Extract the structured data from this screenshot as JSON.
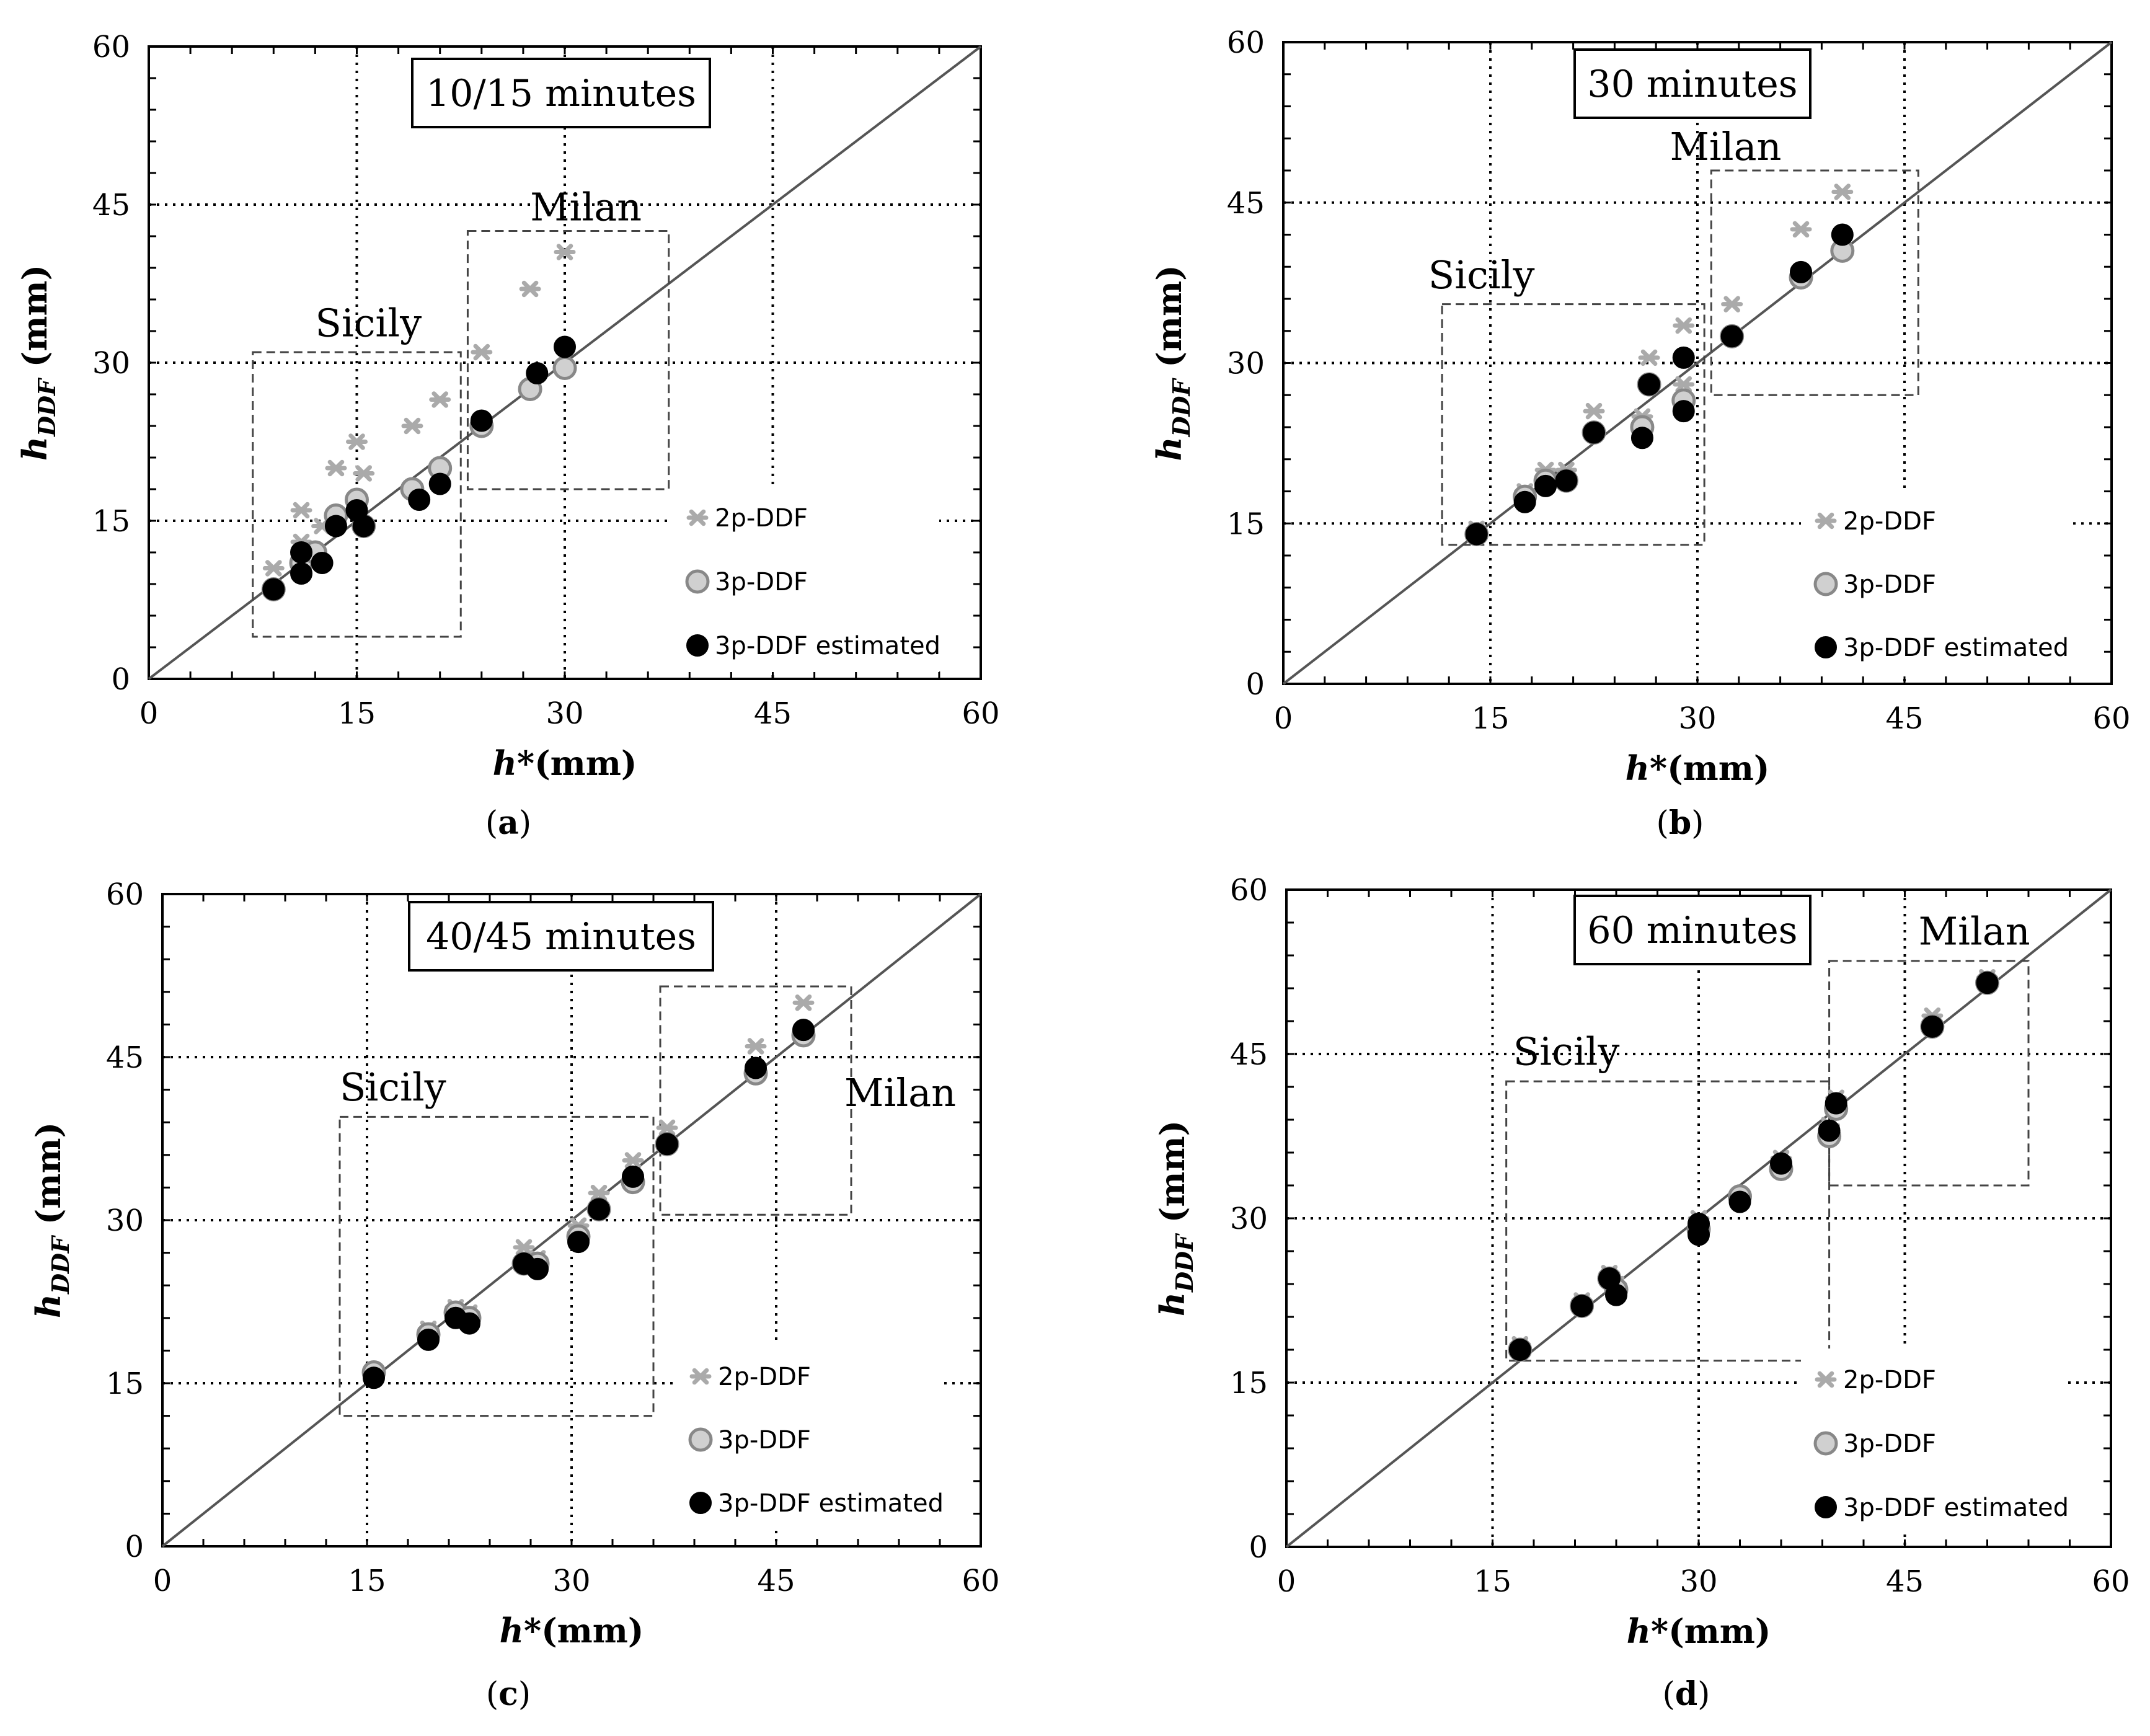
{
  "chart_data": [
    {
      "type": "scatter",
      "panel": "(a)",
      "panel_letter": "a",
      "title": "10/15 minutes",
      "xlabel": "h*(mm)",
      "ylabel": "hDDF (mm)",
      "xlim": [
        0,
        60
      ],
      "ylim": [
        0,
        60
      ],
      "xticks": [
        0,
        15,
        30,
        45,
        60
      ],
      "yticks": [
        0,
        15,
        30,
        45,
        60
      ],
      "regions": [
        {
          "name": "Sicily",
          "x": [
            7.5,
            22.5
          ],
          "y": [
            4,
            31
          ],
          "label_at": [
            12,
            32.5
          ]
        },
        {
          "name": "Milan",
          "x": [
            23,
            37.5
          ],
          "y": [
            18,
            42.5
          ],
          "label_at": [
            27.5,
            43.5
          ]
        }
      ],
      "series": [
        {
          "name": "2p-DDF",
          "marker": "asterisk",
          "color": "#aaaaaa",
          "points": [
            [
              9,
              10.5
            ],
            [
              11,
              16
            ],
            [
              11,
              13
            ],
            [
              12.5,
              14.5
            ],
            [
              13.5,
              20
            ],
            [
              15,
              22.5
            ],
            [
              15.5,
              19.5
            ],
            [
              19,
              24
            ],
            [
              21,
              26.5
            ],
            [
              24,
              31
            ],
            [
              27.5,
              37
            ],
            [
              30,
              40.5
            ]
          ]
        },
        {
          "name": "3p-DDF",
          "marker": "hollow-circle",
          "color": "#888888",
          "points": [
            [
              9,
              8.5
            ],
            [
              11,
              11
            ],
            [
              12,
              12
            ],
            [
              13.5,
              15.5
            ],
            [
              15,
              17
            ],
            [
              15.5,
              14.5
            ],
            [
              19,
              18
            ],
            [
              21,
              20
            ],
            [
              24,
              24
            ],
            [
              27.5,
              27.5
            ],
            [
              30,
              29.5
            ]
          ]
        },
        {
          "name": "3p-DDF estimated",
          "marker": "filled-circle",
          "color": "#000000",
          "points": [
            [
              9,
              8.5
            ],
            [
              11,
              12
            ],
            [
              11,
              10
            ],
            [
              12.5,
              11
            ],
            [
              13.5,
              14.5
            ],
            [
              15,
              16
            ],
            [
              15.5,
              14.5
            ],
            [
              19.5,
              17
            ],
            [
              21,
              18.5
            ],
            [
              24,
              24.5
            ],
            [
              28,
              29
            ],
            [
              30,
              31.5
            ]
          ]
        }
      ],
      "legend": [
        "2p-DDF",
        "3p-DDF",
        "3p-DDF estimated"
      ]
    },
    {
      "type": "scatter",
      "panel": "(b)",
      "panel_letter": "b",
      "title": "30 minutes",
      "xlabel": "h*(mm)",
      "ylabel": "hDDF (mm)",
      "xlim": [
        0,
        60
      ],
      "ylim": [
        0,
        60
      ],
      "xticks": [
        0,
        15,
        30,
        45,
        60
      ],
      "yticks": [
        0,
        15,
        30,
        45,
        60
      ],
      "regions": [
        {
          "name": "Sicily",
          "x": [
            11.5,
            30.5
          ],
          "y": [
            13,
            35.5
          ],
          "label_at": [
            10.5,
            37
          ]
        },
        {
          "name": "Milan",
          "x": [
            31,
            46
          ],
          "y": [
            27,
            48
          ],
          "label_at": [
            28,
            49
          ]
        }
      ],
      "series": [
        {
          "name": "2p-DDF",
          "marker": "asterisk",
          "color": "#aaaaaa",
          "points": [
            [
              14,
              14.5
            ],
            [
              17.5,
              18
            ],
            [
              19,
              20
            ],
            [
              20.5,
              20
            ],
            [
              22.5,
              25.5
            ],
            [
              26,
              25
            ],
            [
              26.5,
              30.5
            ],
            [
              29,
              28
            ],
            [
              29,
              33.5
            ],
            [
              32.5,
              35.5
            ],
            [
              37.5,
              42.5
            ],
            [
              40.5,
              46
            ]
          ]
        },
        {
          "name": "3p-DDF",
          "marker": "hollow-circle",
          "color": "#888888",
          "points": [
            [
              14,
              14
            ],
            [
              17.5,
              17.5
            ],
            [
              19,
              19
            ],
            [
              20.5,
              19
            ],
            [
              22.5,
              23.5
            ],
            [
              26,
              24
            ],
            [
              26.5,
              28
            ],
            [
              29,
              26.5
            ],
            [
              32.5,
              32.5
            ],
            [
              37.5,
              38
            ],
            [
              40.5,
              40.5
            ]
          ]
        },
        {
          "name": "3p-DDF estimated",
          "marker": "filled-circle",
          "color": "#000000",
          "points": [
            [
              14,
              14
            ],
            [
              17.5,
              17
            ],
            [
              19,
              18.5
            ],
            [
              20.5,
              19
            ],
            [
              22.5,
              23.5
            ],
            [
              26,
              23
            ],
            [
              26.5,
              28
            ],
            [
              29,
              30.5
            ],
            [
              29,
              25.5
            ],
            [
              32.5,
              32.5
            ],
            [
              37.5,
              38.5
            ],
            [
              40.5,
              42
            ]
          ]
        }
      ],
      "legend": [
        "2p-DDF",
        "3p-DDF",
        "3p-DDF estimated"
      ]
    },
    {
      "type": "scatter",
      "panel": "(c)",
      "panel_letter": "c",
      "title": "40/45 minutes",
      "xlabel": "h*(mm)",
      "ylabel": "hDDF (mm)",
      "xlim": [
        0,
        60
      ],
      "ylim": [
        0,
        60
      ],
      "xticks": [
        0,
        15,
        30,
        45,
        60
      ],
      "yticks": [
        0,
        15,
        30,
        45,
        60
      ],
      "regions": [
        {
          "name": "Sicily",
          "x": [
            13,
            36
          ],
          "y": [
            12,
            39.5
          ],
          "label_at": [
            13,
            41
          ]
        },
        {
          "name": "Milan",
          "x": [
            36.5,
            50.5
          ],
          "y": [
            30.5,
            51.5
          ],
          "label_at": [
            50,
            40.5
          ]
        }
      ],
      "series": [
        {
          "name": "2p-DDF",
          "marker": "asterisk",
          "color": "#aaaaaa",
          "points": [
            [
              15.5,
              15.5
            ],
            [
              19.5,
              20
            ],
            [
              21.5,
              22
            ],
            [
              22.5,
              21.5
            ],
            [
              26.5,
              27.5
            ],
            [
              27.5,
              26.5
            ],
            [
              30.5,
              29.5
            ],
            [
              32,
              32.5
            ],
            [
              34.5,
              35.5
            ],
            [
              37,
              38.5
            ],
            [
              43.5,
              46
            ],
            [
              47,
              50
            ]
          ]
        },
        {
          "name": "3p-DDF",
          "marker": "hollow-circle",
          "color": "#888888",
          "points": [
            [
              15.5,
              16
            ],
            [
              19.5,
              19.5
            ],
            [
              21.5,
              21.5
            ],
            [
              22.5,
              21
            ],
            [
              26.5,
              26
            ],
            [
              27.5,
              26
            ],
            [
              30.5,
              28.5
            ],
            [
              32,
              31
            ],
            [
              34.5,
              33.5
            ],
            [
              37,
              37
            ],
            [
              43.5,
              43.5
            ],
            [
              47,
              47
            ]
          ]
        },
        {
          "name": "3p-DDF estimated",
          "marker": "filled-circle",
          "color": "#000000",
          "points": [
            [
              15.5,
              15.5
            ],
            [
              19.5,
              19
            ],
            [
              21.5,
              21
            ],
            [
              22.5,
              20.5
            ],
            [
              26.5,
              26
            ],
            [
              27.5,
              25.5
            ],
            [
              30.5,
              28
            ],
            [
              32,
              31
            ],
            [
              34.5,
              34
            ],
            [
              37,
              37
            ],
            [
              43.5,
              44
            ],
            [
              47,
              47.5
            ]
          ]
        }
      ],
      "legend": [
        "2p-DDF",
        "3p-DDF",
        "3p-DDF estimated"
      ]
    },
    {
      "type": "scatter",
      "panel": "(d)",
      "panel_letter": "d",
      "title": "60 minutes",
      "xlabel": "h*(mm)",
      "ylabel": "hDDF (mm)",
      "xlim": [
        0,
        60
      ],
      "ylim": [
        0,
        60
      ],
      "xticks": [
        0,
        15,
        30,
        45,
        60
      ],
      "yticks": [
        0,
        15,
        30,
        45,
        60
      ],
      "regions": [
        {
          "name": "Sicily",
          "x": [
            16,
            39.5
          ],
          "y": [
            17,
            42.5
          ],
          "label_at": [
            16.5,
            44
          ]
        },
        {
          "name": "Milan",
          "x": [
            39.5,
            54
          ],
          "y": [
            33,
            53.5
          ],
          "label_at": [
            46,
            55
          ]
        }
      ],
      "series": [
        {
          "name": "2p-DDF",
          "marker": "asterisk",
          "color": "#aaaaaa",
          "points": [
            [
              17,
              18.5
            ],
            [
              21.5,
              22.5
            ],
            [
              23.5,
              25
            ],
            [
              24,
              24
            ],
            [
              30,
              30
            ],
            [
              33,
              32
            ],
            [
              36,
              35.5
            ],
            [
              39.5,
              38.5
            ],
            [
              40,
              41
            ],
            [
              47,
              48.5
            ],
            [
              51,
              52
            ]
          ]
        },
        {
          "name": "3p-DDF",
          "marker": "hollow-circle",
          "color": "#888888",
          "points": [
            [
              17,
              18
            ],
            [
              21.5,
              22
            ],
            [
              23.5,
              24.5
            ],
            [
              24,
              23.5
            ],
            [
              30,
              29
            ],
            [
              33,
              32
            ],
            [
              36,
              34.5
            ],
            [
              39.5,
              37.5
            ],
            [
              40,
              40
            ],
            [
              47,
              47.5
            ],
            [
              51,
              51.5
            ]
          ]
        },
        {
          "name": "3p-DDF estimated",
          "marker": "filled-circle",
          "color": "#000000",
          "points": [
            [
              17,
              18
            ],
            [
              21.5,
              22
            ],
            [
              23.5,
              24.5
            ],
            [
              24,
              23
            ],
            [
              30,
              28.5
            ],
            [
              30,
              29.5
            ],
            [
              33,
              31.5
            ],
            [
              36,
              35
            ],
            [
              39.5,
              38
            ],
            [
              40,
              40.5
            ],
            [
              47,
              47.5
            ],
            [
              51,
              51.5
            ]
          ]
        }
      ],
      "legend": [
        "2p-DDF",
        "3p-DDF",
        "3p-DDF estimated"
      ]
    }
  ]
}
